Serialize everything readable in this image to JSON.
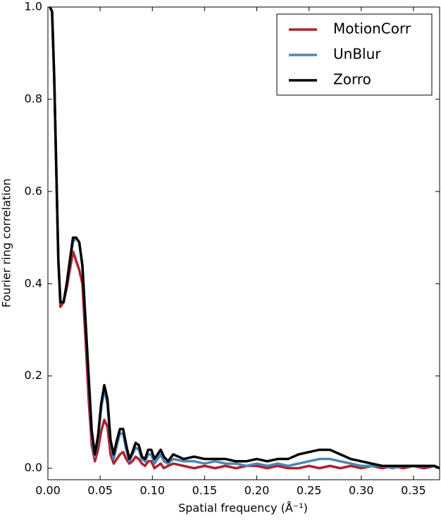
{
  "chart_data": {
    "type": "line",
    "xlabel": "Spatial frequency (Å⁻¹)",
    "ylabel": "Fourier ring correlation",
    "x": [
      0.002,
      0.004,
      0.006,
      0.008,
      0.01,
      0.012,
      0.015,
      0.018,
      0.021,
      0.024,
      0.027,
      0.03,
      0.033,
      0.036,
      0.039,
      0.042,
      0.045,
      0.048,
      0.051,
      0.054,
      0.057,
      0.06,
      0.063,
      0.066,
      0.069,
      0.072,
      0.075,
      0.078,
      0.081,
      0.084,
      0.087,
      0.09,
      0.093,
      0.096,
      0.099,
      0.102,
      0.105,
      0.108,
      0.111,
      0.115,
      0.12,
      0.13,
      0.14,
      0.15,
      0.16,
      0.17,
      0.18,
      0.19,
      0.2,
      0.21,
      0.22,
      0.23,
      0.24,
      0.25,
      0.26,
      0.27,
      0.28,
      0.29,
      0.3,
      0.31,
      0.32,
      0.33,
      0.34,
      0.35,
      0.36,
      0.37,
      0.375
    ],
    "series": [
      {
        "name": "MotionCorr",
        "color": "#b2202c",
        "values": [
          1.0,
          0.99,
          0.85,
          0.65,
          0.45,
          0.35,
          0.36,
          0.39,
          0.43,
          0.47,
          0.45,
          0.43,
          0.4,
          0.28,
          0.15,
          0.05,
          0.015,
          0.04,
          0.08,
          0.105,
          0.09,
          0.03,
          0.01,
          0.02,
          0.03,
          0.035,
          0.02,
          0.01,
          0.015,
          0.025,
          0.02,
          0.01,
          0.005,
          0.015,
          0.015,
          0.0,
          0.005,
          0.01,
          0.0,
          0.005,
          0.01,
          0.005,
          0.0,
          0.005,
          0.0,
          0.005,
          0.0,
          0.005,
          0.005,
          0.0,
          0.005,
          0.0,
          0.0,
          0.005,
          0.0,
          0.005,
          0.0,
          0.005,
          0.0,
          0.005,
          0.0,
          0.005,
          0.0,
          0.005,
          0.0,
          0.005,
          0.0
        ]
      },
      {
        "name": "UnBlur",
        "color": "#4a87b8",
        "values": [
          1.0,
          0.99,
          0.85,
          0.65,
          0.45,
          0.36,
          0.36,
          0.4,
          0.45,
          0.49,
          0.5,
          0.49,
          0.44,
          0.32,
          0.19,
          0.07,
          0.025,
          0.065,
          0.13,
          0.17,
          0.14,
          0.055,
          0.02,
          0.05,
          0.075,
          0.075,
          0.04,
          0.015,
          0.03,
          0.045,
          0.04,
          0.02,
          0.015,
          0.03,
          0.03,
          0.01,
          0.02,
          0.03,
          0.015,
          0.01,
          0.02,
          0.015,
          0.015,
          0.01,
          0.015,
          0.01,
          0.01,
          0.005,
          0.01,
          0.005,
          0.01,
          0.005,
          0.01,
          0.015,
          0.02,
          0.02,
          0.015,
          0.01,
          0.005,
          0.005,
          0.005,
          0.0,
          0.005,
          0.005,
          0.005,
          0.005,
          0.0
        ]
      },
      {
        "name": "Zorro",
        "color": "#000000",
        "values": [
          1.0,
          0.99,
          0.85,
          0.65,
          0.45,
          0.36,
          0.36,
          0.4,
          0.45,
          0.5,
          0.5,
          0.49,
          0.44,
          0.32,
          0.2,
          0.08,
          0.03,
          0.07,
          0.14,
          0.18,
          0.15,
          0.06,
          0.03,
          0.06,
          0.085,
          0.085,
          0.05,
          0.02,
          0.035,
          0.055,
          0.05,
          0.025,
          0.02,
          0.04,
          0.04,
          0.02,
          0.03,
          0.04,
          0.025,
          0.015,
          0.03,
          0.02,
          0.025,
          0.02,
          0.02,
          0.02,
          0.015,
          0.015,
          0.02,
          0.015,
          0.02,
          0.02,
          0.03,
          0.035,
          0.04,
          0.04,
          0.03,
          0.02,
          0.015,
          0.01,
          0.005,
          0.005,
          0.005,
          0.005,
          0.005,
          0.005,
          0.0
        ]
      }
    ],
    "xlim": [
      0,
      0.375
    ],
    "ylim": [
      -0.025,
      1.0
    ],
    "xticks": [
      {
        "value": 0,
        "label": "0.00"
      },
      0.05,
      {
        "value": 0.1,
        "label": "0.10"
      },
      0.15,
      {
        "value": 0.2,
        "label": "0.20"
      },
      0.25,
      {
        "value": 0.3,
        "label": "0.30"
      },
      0.35
    ],
    "yticks": [
      {
        "value": 0,
        "label": "0.0"
      },
      0.2,
      0.4,
      0.6,
      0.8,
      {
        "value": 1,
        "label": "1.0"
      }
    ],
    "legend": "upper right"
  }
}
